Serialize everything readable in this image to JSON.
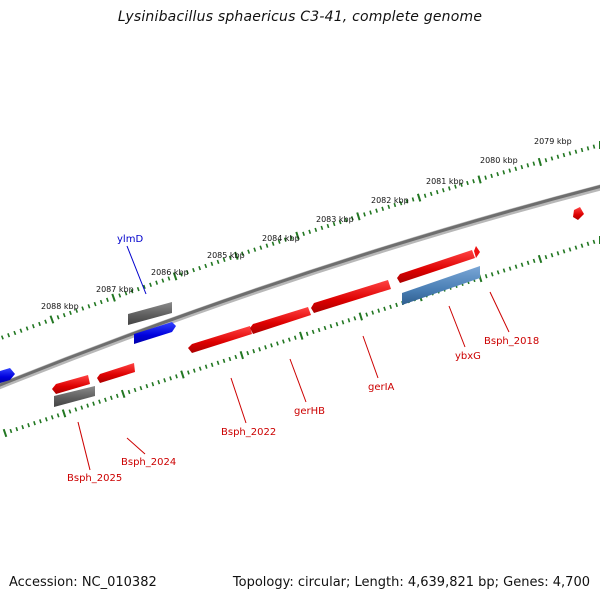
{
  "title": "Lysinibacillus sphaericus C3-41, complete genome",
  "footer": {
    "accession": "Accession: NC_010382",
    "summary": "Topology: circular; Length: 4,639,821 bp; Genes: 4,700"
  },
  "scale_labels": [
    "2079 kbp",
    "2080 kbp",
    "2081 kbp",
    "2082 kbp",
    "2083 kbp",
    "2084 kbp",
    "2085 kbp",
    "2086 kbp",
    "2087 kbp",
    "2088 kbp"
  ],
  "gene_labels": [
    {
      "text": "ylmD",
      "color": "#0000cc"
    },
    {
      "text": "Bsph_2025",
      "color": "#cc0000"
    },
    {
      "text": "Bsph_2024",
      "color": "#cc0000"
    },
    {
      "text": "Bsph_2022",
      "color": "#cc0000"
    },
    {
      "text": "gerHB",
      "color": "#cc0000"
    },
    {
      "text": "gerIA",
      "color": "#cc0000"
    },
    {
      "text": "ybxG",
      "color": "#cc0000"
    },
    {
      "text": "Bsph_2018",
      "color": "#cc0000"
    }
  ],
  "colors": {
    "forward_gene": "#ee1111",
    "reverse_gene": "#0000ee",
    "grey_gene": "#666666",
    "steelblue_gene": "#4a7fb5",
    "backbone": "#777777",
    "tick": "#227722"
  }
}
